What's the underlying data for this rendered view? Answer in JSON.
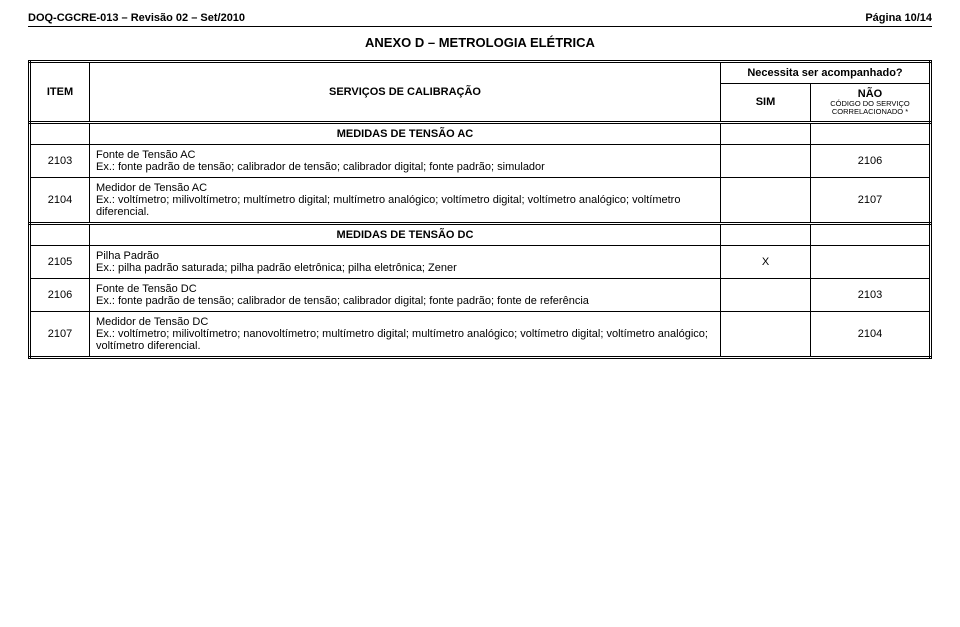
{
  "header": {
    "left": "DOQ-CGCRE-013 – Revisão 02 – Set/2010",
    "right": "Página 10/14"
  },
  "anexo_title": "ANEXO D – METROLOGIA ELÉTRICA",
  "table": {
    "head": {
      "item": "ITEM",
      "servicos": "SERVIÇOS DE CALIBRAÇÃO",
      "necessita": "Necessita ser acompanhado?",
      "sim": "SIM",
      "nao_line1": "NÃO",
      "nao_line2": "CÓDIGO DO SERVIÇO",
      "nao_line3": "CORRELACIONADO *"
    },
    "section_ac": "MEDIDAS DE TENSÃO AC",
    "section_dc": "MEDIDAS DE TENSÃO DC",
    "rows": [
      {
        "item": "2103",
        "title": "Fonte de Tensão AC",
        "ex": "Ex.: fonte padrão de tensão; calibrador de tensão; calibrador digital; fonte padrão; simulador",
        "sim": "",
        "nao": "2106"
      },
      {
        "item": "2104",
        "title": "Medidor de Tensão AC",
        "ex": "Ex.: voltímetro; milivoltímetro; multímetro digital; multímetro analógico; voltímetro digital; voltímetro analógico; voltímetro diferencial.",
        "sim": "",
        "nao": "2107"
      },
      {
        "item": "2105",
        "title": "Pilha Padrão",
        "ex": "Ex.: pilha padrão saturada; pilha padrão eletrônica; pilha eletrônica; Zener",
        "sim": "X",
        "nao": ""
      },
      {
        "item": "2106",
        "title": "Fonte de Tensão DC",
        "ex": "Ex.: fonte padrão de tensão; calibrador de tensão; calibrador digital; fonte padrão; fonte de referência",
        "sim": "",
        "nao": "2103"
      },
      {
        "item": "2107",
        "title": "Medidor de Tensão DC",
        "ex": "Ex.: voltímetro; milivoltímetro; nanovoltímetro; multímetro digital; multímetro analógico; voltímetro digital; voltímetro analógico; voltímetro diferencial.",
        "sim": "",
        "nao": "2104"
      }
    ]
  }
}
